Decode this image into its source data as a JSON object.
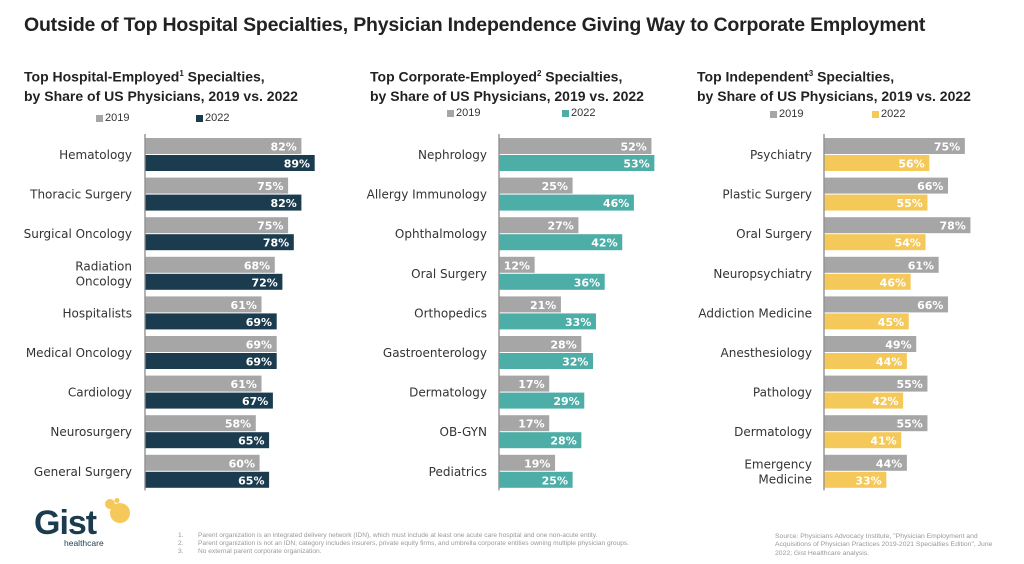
{
  "main_title": "Outside of Top Hospital Specialties, Physician Independence Giving Way to Corporate Employment",
  "chart_data": [
    {
      "type": "bar",
      "orientation": "horizontal",
      "title_line1_pre": "Top Hospital-Employed",
      "title_sup": "1",
      "title_line1_post": " Specialties,",
      "title_line2": "by Share of US Physicians, 2019 vs. 2022",
      "categories": [
        "Hematology",
        "Thoracic Surgery",
        "Surgical Oncology",
        "Radiation Oncology",
        "Hospitalists",
        "Medical Oncology",
        "Cardiology",
        "Neurosurgery",
        "General Surgery"
      ],
      "series": [
        {
          "name": "2019",
          "color": "#a6a6a6",
          "values": [
            82,
            75,
            75,
            68,
            61,
            69,
            61,
            58,
            60
          ]
        },
        {
          "name": "2022",
          "color": "#1b3c4f",
          "values": [
            89,
            82,
            78,
            72,
            69,
            69,
            67,
            65,
            65
          ]
        }
      ],
      "unit": "%",
      "xlim": [
        0,
        100
      ],
      "legend": "top"
    },
    {
      "type": "bar",
      "orientation": "horizontal",
      "title_line1_pre": "Top Corporate-Employed",
      "title_sup": "2",
      "title_line1_post": " Specialties,",
      "title_line2": "by Share of US Physicians, 2019 vs. 2022",
      "categories": [
        "Nephrology",
        "Allergy Immunology",
        "Ophthalmology",
        "Oral Surgery",
        "Orthopedics",
        "Gastroenterology",
        "Dermatology",
        "OB-GYN",
        "Pediatrics"
      ],
      "series": [
        {
          "name": "2019",
          "color": "#a6a6a6",
          "values": [
            52,
            25,
            27,
            12,
            21,
            28,
            17,
            17,
            19
          ]
        },
        {
          "name": "2022",
          "color": "#4dada7",
          "values": [
            53,
            46,
            42,
            36,
            33,
            32,
            29,
            28,
            25
          ]
        }
      ],
      "unit": "%",
      "xlim": [
        0,
        60
      ],
      "legend": "top"
    },
    {
      "type": "bar",
      "orientation": "horizontal",
      "title_line1_pre": "Top Independent",
      "title_sup": "3",
      "title_line1_post": " Specialties,",
      "title_line2": "by Share of US Physicians, 2019 vs. 2022",
      "categories": [
        "Psychiatry",
        "Plastic Surgery",
        "Oral Surgery",
        "Neuropsychiatry",
        "Addiction Medicine",
        "Anesthesiology",
        "Pathology",
        "Dermatology",
        "Emergency Medicine"
      ],
      "series": [
        {
          "name": "2019",
          "color": "#a6a6a6",
          "values": [
            75,
            66,
            78,
            61,
            66,
            49,
            55,
            55,
            44
          ]
        },
        {
          "name": "2022",
          "color": "#f5c85a",
          "values": [
            56,
            55,
            54,
            46,
            45,
            44,
            42,
            41,
            33
          ]
        }
      ],
      "unit": "%",
      "xlim": [
        0,
        100
      ],
      "legend": "top"
    }
  ],
  "logo": {
    "word": "Gist",
    "sub": "healthcare",
    "brand_dark": "#1b3c4f",
    "brand_yellow": "#f5c85a"
  },
  "footnotes": [
    {
      "num": "1.",
      "text": "Parent organization is an integrated delivery network (IDN), which must include at least one acute care hospital and one non-acute entity."
    },
    {
      "num": "2.",
      "text": "Parent organization is not an IDN; category includes insurers, private equity firms, and umbrella corporate entities owning multiple physician groups."
    },
    {
      "num": "3.",
      "text": "No external parent corporate organization."
    }
  ],
  "source": "Source: Physicians Advocacy Institute, \"Physician Employment and Acquisitions of Physician Practices 2019-2021 Specialties Edition\", June 2022; Gist Healthcare analysis."
}
